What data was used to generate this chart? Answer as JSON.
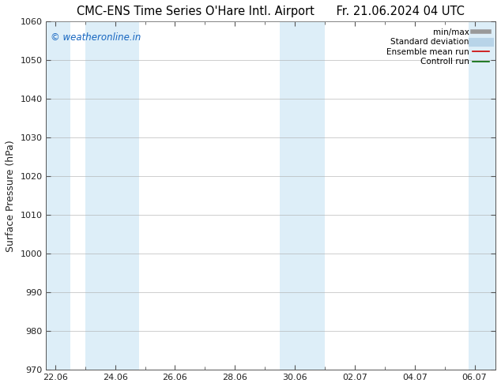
{
  "title": "CMC-ENS Time Series O'Hare Intl. Airport      Fr. 21.06.2024 04 UTC",
  "ylabel": "Surface Pressure (hPa)",
  "ylim": [
    970,
    1060
  ],
  "yticks": [
    970,
    980,
    990,
    1000,
    1010,
    1020,
    1030,
    1040,
    1050,
    1060
  ],
  "xtick_labels": [
    "22.06",
    "24.06",
    "26.06",
    "28.06",
    "30.06",
    "02.07",
    "04.07",
    "06.07"
  ],
  "xtick_positions": [
    0,
    2,
    4,
    6,
    8,
    10,
    12,
    14
  ],
  "xlim": [
    -0.3,
    14.7
  ],
  "shaded_bands": [
    {
      "x_start": -0.3,
      "x_end": 0.5,
      "color": "#ddeef8"
    },
    {
      "x_start": 1.0,
      "x_end": 2.8,
      "color": "#ddeef8"
    },
    {
      "x_start": 7.5,
      "x_end": 9.0,
      "color": "#ddeef8"
    },
    {
      "x_start": 13.8,
      "x_end": 14.7,
      "color": "#ddeef8"
    }
  ],
  "watermark_text": "© weatheronline.in",
  "watermark_color": "#1565c0",
  "watermark_fontsize": 8.5,
  "background_color": "#ffffff",
  "plot_bg_color": "#ffffff",
  "legend_items": [
    {
      "label": "min/max",
      "color": "#999999",
      "lw": 4,
      "style": "solid"
    },
    {
      "label": "Standard deviation",
      "color": "#b8d4e8",
      "lw": 8,
      "style": "solid"
    },
    {
      "label": "Ensemble mean run",
      "color": "#cc0000",
      "lw": 1.2,
      "style": "solid"
    },
    {
      "label": "Controll run",
      "color": "#006600",
      "lw": 1.2,
      "style": "solid"
    }
  ],
  "grid_color": "#aaaaaa",
  "spine_color": "#555555",
  "tick_color": "#222222",
  "title_fontsize": 10.5,
  "label_fontsize": 9,
  "tick_fontsize": 8,
  "legend_fontsize": 7.5
}
